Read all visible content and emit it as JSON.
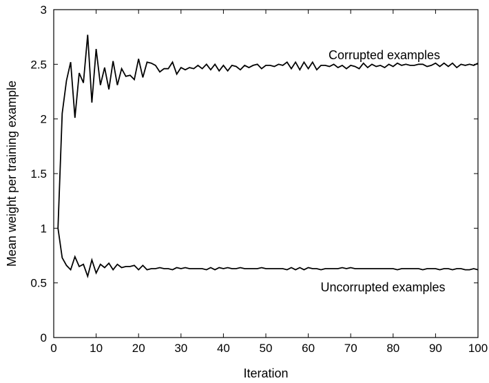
{
  "chart_data": {
    "type": "line",
    "title": "",
    "xlabel": "Iteration",
    "ylabel": "Mean weight per training example",
    "xlim": [
      0,
      100
    ],
    "ylim": [
      0,
      3
    ],
    "xticks": [
      0,
      10,
      20,
      30,
      40,
      50,
      60,
      70,
      80,
      90,
      100
    ],
    "yticks": [
      0,
      0.5,
      1,
      1.5,
      2,
      2.5,
      3
    ],
    "ytick_labels": [
      "0",
      "0.5",
      "1",
      "1.5",
      "2",
      "2.5",
      "3"
    ],
    "grid": false,
    "legend": "none",
    "annotations": [
      {
        "text": "Corrupted examples",
        "x": 72,
        "y": 2.62
      },
      {
        "text": "Uncorrupted examples",
        "x": 72,
        "y": 0.44
      }
    ],
    "series": [
      {
        "x": [
          1,
          2,
          3,
          4,
          5,
          6,
          7,
          8,
          9,
          10,
          11,
          12,
          13,
          14,
          15,
          16,
          17,
          18,
          19,
          20,
          21,
          22,
          23,
          24,
          25,
          26,
          27,
          28,
          29,
          30,
          31,
          32,
          33,
          34,
          35,
          36,
          37,
          38,
          39,
          40,
          41,
          42,
          43,
          44,
          45,
          46,
          47,
          48,
          49,
          50,
          51,
          52,
          53,
          54,
          55,
          56,
          57,
          58,
          59,
          60,
          61,
          62,
          63,
          64,
          65,
          66,
          67,
          68,
          69,
          70,
          71,
          72,
          73,
          74,
          75,
          76,
          77,
          78,
          79,
          80,
          81,
          82,
          83,
          84,
          85,
          86,
          87,
          88,
          89,
          90,
          91,
          92,
          93,
          94,
          95,
          96,
          97,
          98,
          99,
          100
        ],
        "values": [
          1.0,
          2.05,
          2.35,
          2.52,
          2.01,
          2.42,
          2.33,
          2.77,
          2.15,
          2.64,
          2.31,
          2.47,
          2.27,
          2.53,
          2.31,
          2.46,
          2.39,
          2.4,
          2.36,
          2.55,
          2.38,
          2.52,
          2.51,
          2.49,
          2.43,
          2.46,
          2.46,
          2.52,
          2.41,
          2.47,
          2.45,
          2.47,
          2.46,
          2.49,
          2.46,
          2.5,
          2.45,
          2.5,
          2.44,
          2.49,
          2.44,
          2.49,
          2.48,
          2.45,
          2.49,
          2.47,
          2.49,
          2.5,
          2.46,
          2.49,
          2.49,
          2.48,
          2.5,
          2.49,
          2.52,
          2.46,
          2.52,
          2.45,
          2.52,
          2.46,
          2.52,
          2.45,
          2.49,
          2.49,
          2.48,
          2.5,
          2.47,
          2.49,
          2.46,
          2.49,
          2.48,
          2.46,
          2.51,
          2.47,
          2.5,
          2.48,
          2.49,
          2.47,
          2.5,
          2.48,
          2.51,
          2.49,
          2.5,
          2.49,
          2.49,
          2.5,
          2.5,
          2.48,
          2.49,
          2.51,
          2.48,
          2.51,
          2.48,
          2.51,
          2.47,
          2.5,
          2.49,
          2.5,
          2.49,
          2.51
        ]
      },
      {
        "x": [
          1,
          2,
          3,
          4,
          5,
          6,
          7,
          8,
          9,
          10,
          11,
          12,
          13,
          14,
          15,
          16,
          17,
          18,
          19,
          20,
          21,
          22,
          23,
          24,
          25,
          26,
          27,
          28,
          29,
          30,
          31,
          32,
          33,
          34,
          35,
          36,
          37,
          38,
          39,
          40,
          41,
          42,
          43,
          44,
          45,
          46,
          47,
          48,
          49,
          50,
          51,
          52,
          53,
          54,
          55,
          56,
          57,
          58,
          59,
          60,
          61,
          62,
          63,
          64,
          65,
          66,
          67,
          68,
          69,
          70,
          71,
          72,
          73,
          74,
          75,
          76,
          77,
          78,
          79,
          80,
          81,
          82,
          83,
          84,
          85,
          86,
          87,
          88,
          89,
          90,
          91,
          92,
          93,
          94,
          95,
          96,
          97,
          98,
          99,
          100
        ],
        "values": [
          1.0,
          0.73,
          0.66,
          0.62,
          0.74,
          0.65,
          0.67,
          0.56,
          0.71,
          0.59,
          0.67,
          0.64,
          0.68,
          0.62,
          0.67,
          0.64,
          0.65,
          0.65,
          0.66,
          0.62,
          0.66,
          0.62,
          0.63,
          0.63,
          0.64,
          0.63,
          0.63,
          0.62,
          0.64,
          0.63,
          0.64,
          0.63,
          0.63,
          0.63,
          0.63,
          0.62,
          0.64,
          0.62,
          0.64,
          0.63,
          0.64,
          0.63,
          0.63,
          0.64,
          0.63,
          0.63,
          0.63,
          0.63,
          0.64,
          0.63,
          0.63,
          0.63,
          0.63,
          0.63,
          0.62,
          0.64,
          0.62,
          0.64,
          0.62,
          0.64,
          0.63,
          0.63,
          0.62,
          0.63,
          0.63,
          0.63,
          0.63,
          0.64,
          0.63,
          0.64,
          0.63,
          0.63,
          0.63,
          0.63,
          0.63,
          0.63,
          0.63,
          0.63,
          0.63,
          0.63,
          0.62,
          0.63,
          0.63,
          0.63,
          0.63,
          0.63,
          0.62,
          0.63,
          0.63,
          0.63,
          0.62,
          0.63,
          0.63,
          0.62,
          0.63,
          0.63,
          0.62,
          0.62,
          0.63,
          0.62
        ]
      }
    ]
  }
}
